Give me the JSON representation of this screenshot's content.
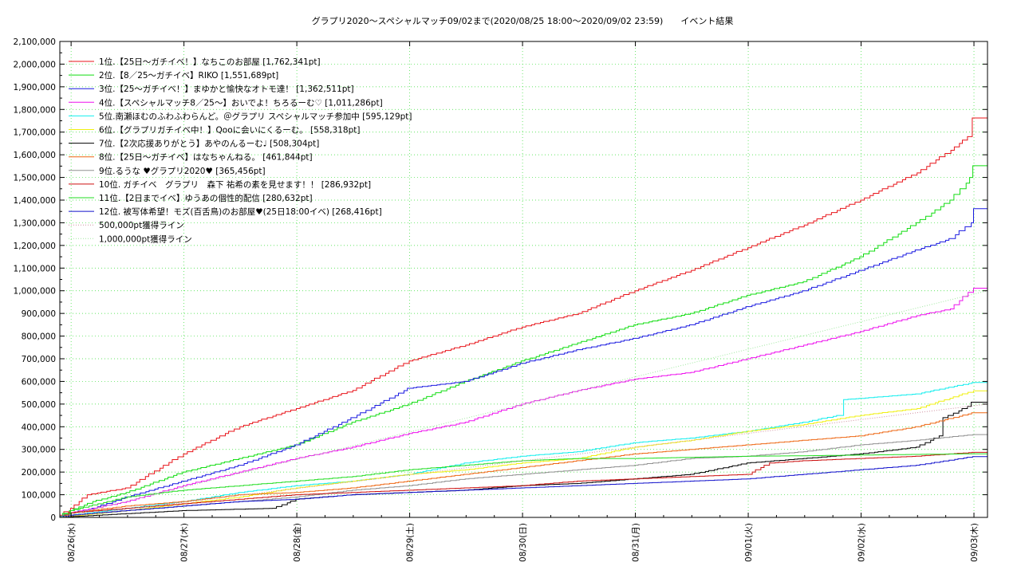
{
  "chart_data": {
    "type": "line",
    "title": "グラプリ2020～スペシャルマッチ09/02まで(2020/08/25 18:00～2020/09/02 23:59)　　イベント結果",
    "xlabel": "",
    "ylabel": "",
    "x_ticks": [
      "08/26(水)",
      "08/27(木)",
      "08/28(金)",
      "08/29(土)",
      "08/30(日)",
      "08/31(月)",
      "09/01(火)",
      "09/02(水)",
      "09/03(木)"
    ],
    "x_range_days": [
      -0.1,
      8.12
    ],
    "ylim": [
      0,
      2100000
    ],
    "y_step": 100000,
    "y_ticks": [
      "0",
      "100,000",
      "200,000",
      "300,000",
      "400,000",
      "500,000",
      "600,000",
      "700,000",
      "800,000",
      "900,000",
      "1,000,000",
      "1,100,000",
      "1,200,000",
      "1,300,000",
      "1,400,000",
      "1,500,000",
      "1,600,000",
      "1,700,000",
      "1,800,000",
      "1,900,000",
      "2,000,000",
      "2,100,000"
    ],
    "grid": true,
    "legend_position": "top-left",
    "series": [
      {
        "name": "1位.【25日～ガチイベ！】なちこのお部屋 [1,762,341pt]",
        "color": "#e8141a",
        "style": "solid",
        "points": [
          [
            -0.1,
            10000
          ],
          [
            0,
            40000
          ],
          [
            0.15,
            100000
          ],
          [
            0.5,
            130000
          ],
          [
            1,
            280000
          ],
          [
            1.5,
            400000
          ],
          [
            2,
            480000
          ],
          [
            2.5,
            560000
          ],
          [
            3,
            690000
          ],
          [
            3.5,
            760000
          ],
          [
            4,
            840000
          ],
          [
            4.5,
            900000
          ],
          [
            5,
            1000000
          ],
          [
            5.5,
            1090000
          ],
          [
            6,
            1190000
          ],
          [
            6.5,
            1290000
          ],
          [
            7,
            1400000
          ],
          [
            7.5,
            1520000
          ],
          [
            7.8,
            1620000
          ],
          [
            7.95,
            1680000
          ],
          [
            8,
            1762341
          ],
          [
            8.12,
            1762341
          ]
        ]
      },
      {
        "name": "2位.【8／25～ガチイベ】RIKO [1,551,689pt]",
        "color": "#11dd11",
        "style": "solid",
        "points": [
          [
            -0.1,
            5000
          ],
          [
            0,
            30000
          ],
          [
            0.2,
            70000
          ],
          [
            0.5,
            110000
          ],
          [
            1,
            200000
          ],
          [
            1.5,
            260000
          ],
          [
            2,
            320000
          ],
          [
            2.5,
            420000
          ],
          [
            3,
            500000
          ],
          [
            3.5,
            600000
          ],
          [
            4,
            690000
          ],
          [
            4.5,
            770000
          ],
          [
            5,
            850000
          ],
          [
            5.5,
            900000
          ],
          [
            6,
            980000
          ],
          [
            6.5,
            1040000
          ],
          [
            7,
            1150000
          ],
          [
            7.5,
            1300000
          ],
          [
            7.8,
            1400000
          ],
          [
            7.98,
            1500000
          ],
          [
            8,
            1551689
          ],
          [
            8.12,
            1551689
          ]
        ]
      },
      {
        "name": "3位.【25～ガチイベ！】まゆかと愉快なオトモ達！ [1,362,511pt]",
        "color": "#1a1ae0",
        "style": "solid",
        "points": [
          [
            -0.1,
            3000
          ],
          [
            0,
            20000
          ],
          [
            0.2,
            40000
          ],
          [
            0.5,
            90000
          ],
          [
            1,
            160000
          ],
          [
            1.5,
            230000
          ],
          [
            2,
            320000
          ],
          [
            2.5,
            440000
          ],
          [
            3,
            570000
          ],
          [
            3.5,
            600000
          ],
          [
            4,
            680000
          ],
          [
            4.5,
            740000
          ],
          [
            5,
            790000
          ],
          [
            5.5,
            850000
          ],
          [
            6,
            930000
          ],
          [
            6.5,
            1000000
          ],
          [
            7,
            1090000
          ],
          [
            7.5,
            1180000
          ],
          [
            7.8,
            1230000
          ],
          [
            7.98,
            1300000
          ],
          [
            8,
            1362511
          ],
          [
            8.12,
            1362511
          ]
        ]
      },
      {
        "name": "4位.【スペシャルマッチ8／25～】おいでよ！ちろるーむ♡ [1,011,286pt]",
        "color": "#ee11ee",
        "style": "solid",
        "points": [
          [
            -0.1,
            2000
          ],
          [
            0,
            20000
          ],
          [
            0.5,
            70000
          ],
          [
            1,
            140000
          ],
          [
            1.5,
            200000
          ],
          [
            2,
            260000
          ],
          [
            2.5,
            310000
          ],
          [
            3,
            370000
          ],
          [
            3.5,
            420000
          ],
          [
            4,
            500000
          ],
          [
            4.5,
            560000
          ],
          [
            5,
            610000
          ],
          [
            5.5,
            640000
          ],
          [
            6,
            700000
          ],
          [
            6.5,
            760000
          ],
          [
            7,
            820000
          ],
          [
            7.5,
            890000
          ],
          [
            7.8,
            920000
          ],
          [
            8,
            1011286
          ],
          [
            8.12,
            1011286
          ]
        ]
      },
      {
        "name": "5位.南瀬ほむのふわふわらんど。＠グラプリ スペシャルマッチ参加中 [595,129pt]",
        "color": "#11eeee",
        "style": "solid",
        "points": [
          [
            -0.1,
            1000
          ],
          [
            0,
            10000
          ],
          [
            0.5,
            40000
          ],
          [
            1,
            70000
          ],
          [
            1.5,
            110000
          ],
          [
            2,
            140000
          ],
          [
            2.5,
            160000
          ],
          [
            3,
            190000
          ],
          [
            3.5,
            240000
          ],
          [
            4,
            270000
          ],
          [
            4.5,
            290000
          ],
          [
            5,
            330000
          ],
          [
            5.5,
            350000
          ],
          [
            6,
            380000
          ],
          [
            6.5,
            420000
          ],
          [
            6.8,
            450000
          ],
          [
            6.85,
            520000
          ],
          [
            7,
            525000
          ],
          [
            7.5,
            545000
          ],
          [
            8,
            595129
          ],
          [
            8.12,
            595129
          ]
        ]
      },
      {
        "name": "6位.【グラプリガチイベ中！】Qooに会いにくるーむ。 [558,318pt]",
        "color": "#f0f011",
        "style": "solid",
        "points": [
          [
            -0.1,
            0
          ],
          [
            0,
            5000
          ],
          [
            0.5,
            30000
          ],
          [
            1,
            60000
          ],
          [
            1.5,
            90000
          ],
          [
            2,
            130000
          ],
          [
            2.5,
            160000
          ],
          [
            3,
            190000
          ],
          [
            3.5,
            210000
          ],
          [
            4,
            240000
          ],
          [
            4.5,
            260000
          ],
          [
            5,
            310000
          ],
          [
            5.5,
            340000
          ],
          [
            6,
            380000
          ],
          [
            6.5,
            410000
          ],
          [
            7,
            450000
          ],
          [
            7.5,
            480000
          ],
          [
            8,
            558318
          ],
          [
            8.12,
            558318
          ]
        ]
      },
      {
        "name": "7位.【2次応援ありがとう】あやのんるーむ♩ [508,304pt]",
        "color": "#000000",
        "style": "solid",
        "points": [
          [
            -0.1,
            0
          ],
          [
            0,
            3000
          ],
          [
            1,
            30000
          ],
          [
            1.8,
            40000
          ],
          [
            2,
            80000
          ],
          [
            2.5,
            100000
          ],
          [
            3,
            110000
          ],
          [
            3.5,
            120000
          ],
          [
            4,
            140000
          ],
          [
            4.5,
            150000
          ],
          [
            5,
            170000
          ],
          [
            5.5,
            190000
          ],
          [
            6,
            240000
          ],
          [
            6.5,
            260000
          ],
          [
            7,
            280000
          ],
          [
            7.5,
            310000
          ],
          [
            7.7,
            360000
          ],
          [
            7.75,
            440000
          ],
          [
            7.95,
            490000
          ],
          [
            8,
            508304
          ],
          [
            8.12,
            508304
          ]
        ]
      },
      {
        "name": "8位.【25日～ガチイベ】はなちゃんねる。 [461,844pt]",
        "color": "#ee6611",
        "style": "solid",
        "points": [
          [
            -0.1,
            0
          ],
          [
            0,
            20000
          ],
          [
            0.5,
            50000
          ],
          [
            1,
            70000
          ],
          [
            1.5,
            100000
          ],
          [
            2,
            110000
          ],
          [
            2.5,
            130000
          ],
          [
            3,
            160000
          ],
          [
            3.5,
            190000
          ],
          [
            4,
            220000
          ],
          [
            4.5,
            250000
          ],
          [
            5,
            280000
          ],
          [
            5.5,
            300000
          ],
          [
            6,
            320000
          ],
          [
            6.5,
            340000
          ],
          [
            7,
            360000
          ],
          [
            7.5,
            400000
          ],
          [
            8,
            461844
          ],
          [
            8.12,
            461844
          ]
        ]
      },
      {
        "name": "9位.るうな ♥グラプリ2020♥ [365,456pt]",
        "color": "#909090",
        "style": "solid",
        "points": [
          [
            -0.1,
            0
          ],
          [
            0,
            10000
          ],
          [
            0.5,
            30000
          ],
          [
            1,
            50000
          ],
          [
            1.5,
            70000
          ],
          [
            2,
            90000
          ],
          [
            2.5,
            120000
          ],
          [
            3,
            140000
          ],
          [
            3.5,
            170000
          ],
          [
            4,
            190000
          ],
          [
            4.5,
            210000
          ],
          [
            5,
            230000
          ],
          [
            5.5,
            260000
          ],
          [
            6,
            270000
          ],
          [
            6.5,
            290000
          ],
          [
            7,
            320000
          ],
          [
            7.5,
            340000
          ],
          [
            8,
            365456
          ],
          [
            8.12,
            365456
          ]
        ]
      },
      {
        "name": "10位. ガチイベ　グラプリ　森下 祐希の素を見せます！！ [286,932pt]",
        "color": "#cc1111",
        "style": "solid",
        "points": [
          [
            -0.1,
            0
          ],
          [
            0,
            20000
          ],
          [
            0.5,
            40000
          ],
          [
            1,
            60000
          ],
          [
            1.5,
            80000
          ],
          [
            2,
            100000
          ],
          [
            2.5,
            110000
          ],
          [
            3,
            120000
          ],
          [
            3.5,
            130000
          ],
          [
            4,
            140000
          ],
          [
            4.5,
            160000
          ],
          [
            5,
            170000
          ],
          [
            5.5,
            180000
          ],
          [
            6,
            190000
          ],
          [
            6.2,
            240000
          ],
          [
            6.5,
            250000
          ],
          [
            7,
            260000
          ],
          [
            7.5,
            270000
          ],
          [
            8,
            286932
          ],
          [
            8.12,
            286932
          ]
        ]
      },
      {
        "name": "11位.【2日までイベ】ゆうあの個性的配信 [280,632pt]",
        "color": "#22dd22",
        "style": "solid",
        "points": [
          [
            -0.1,
            0
          ],
          [
            0,
            30000
          ],
          [
            0.5,
            90000
          ],
          [
            1,
            120000
          ],
          [
            1.5,
            140000
          ],
          [
            2,
            160000
          ],
          [
            2.5,
            180000
          ],
          [
            3,
            210000
          ],
          [
            3.5,
            230000
          ],
          [
            4,
            250000
          ],
          [
            4.5,
            260000
          ],
          [
            5,
            260000
          ],
          [
            5.5,
            265000
          ],
          [
            6,
            270000
          ],
          [
            6.5,
            272000
          ],
          [
            7,
            275000
          ],
          [
            7.5,
            278000
          ],
          [
            8,
            280632
          ],
          [
            8.12,
            280632
          ]
        ]
      },
      {
        "name": "12位. 被写体希望！モズ(百舌鳥)のお部屋♥(25日18:00イベ) [268,416pt]",
        "color": "#1111cc",
        "style": "solid",
        "points": [
          [
            -0.1,
            0
          ],
          [
            0,
            10000
          ],
          [
            0.5,
            30000
          ],
          [
            1,
            50000
          ],
          [
            1.5,
            70000
          ],
          [
            2,
            80000
          ],
          [
            2.5,
            100000
          ],
          [
            3,
            110000
          ],
          [
            3.5,
            120000
          ],
          [
            4,
            130000
          ],
          [
            4.5,
            140000
          ],
          [
            5,
            150000
          ],
          [
            5.5,
            160000
          ],
          [
            6,
            170000
          ],
          [
            6.5,
            190000
          ],
          [
            7,
            210000
          ],
          [
            7.5,
            230000
          ],
          [
            8,
            268416
          ],
          [
            8.12,
            268416
          ]
        ]
      },
      {
        "name": "500,000pt獲得ライン",
        "color": "#d090a0",
        "style": "dotted",
        "points": [
          [
            -0.1,
            0
          ],
          [
            8.12,
            500000
          ]
        ]
      },
      {
        "name": "1,000,000pt獲得ライン",
        "color": "#9fe89f",
        "style": "dotted",
        "points": [
          [
            -0.1,
            0
          ],
          [
            8.12,
            1000000
          ]
        ]
      }
    ]
  }
}
